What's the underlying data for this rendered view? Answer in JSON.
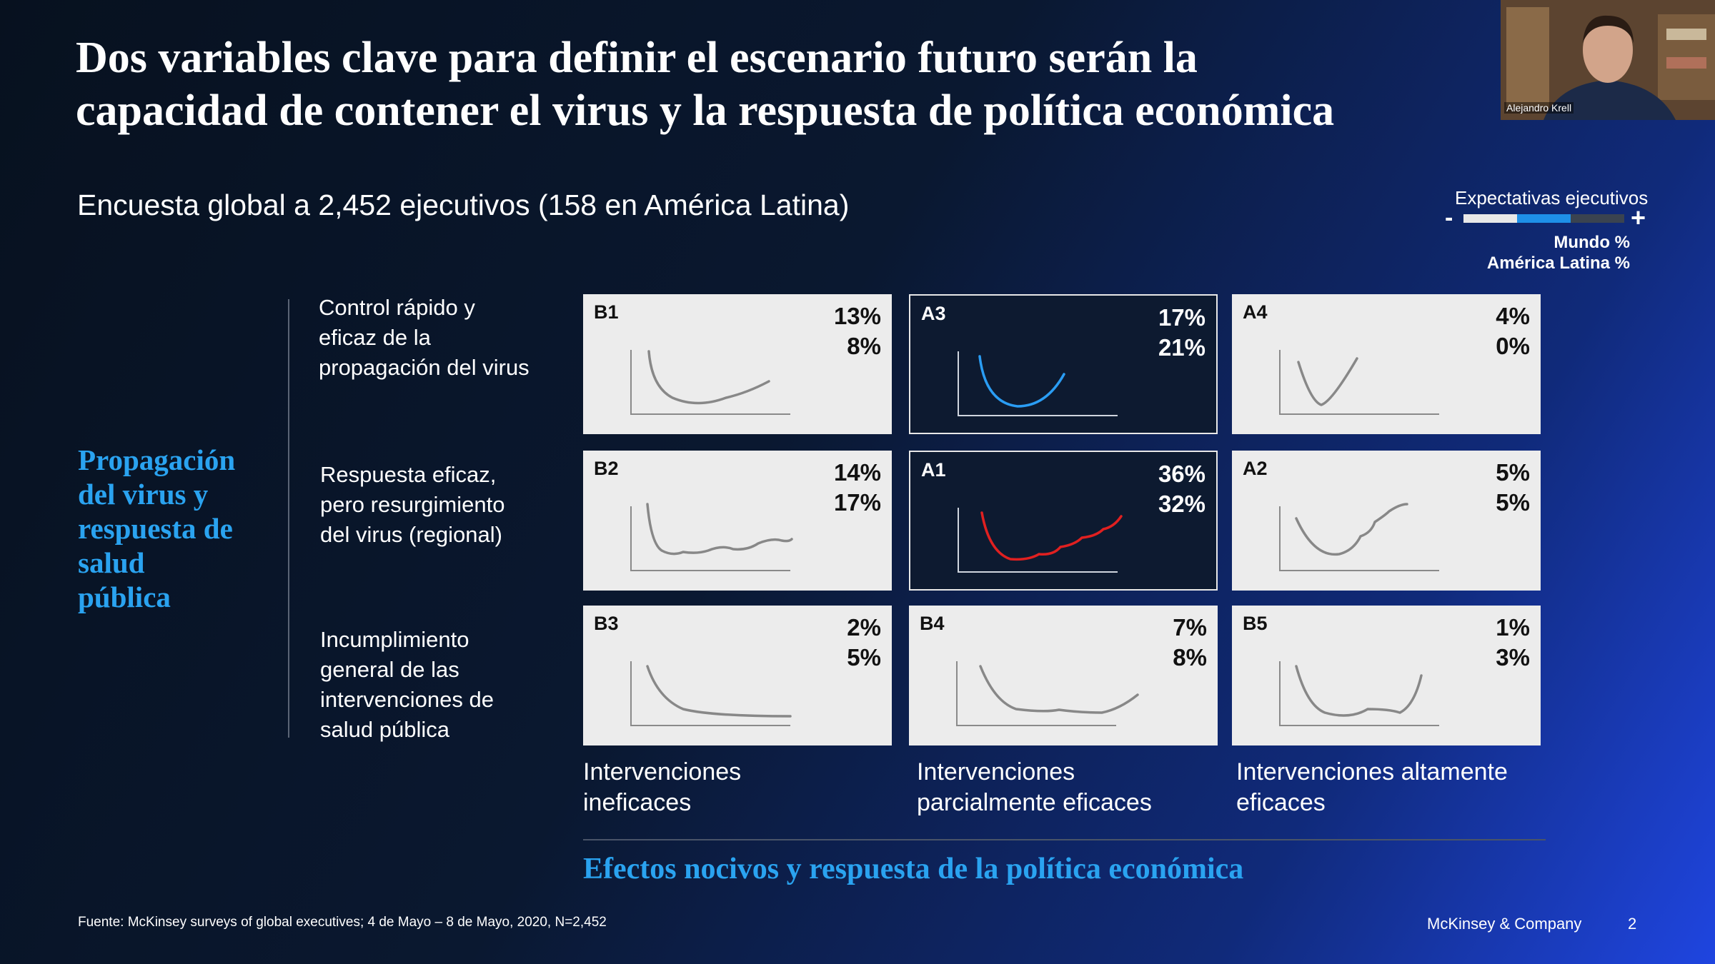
{
  "slide": {
    "title": [
      "Dos variables clave para definir el escenario futuro serán la",
      "capacidad de contener el virus y la respuesta de política económica"
    ],
    "subtitle": "Encuesta global a 2,452 ejecutivos (158 en América Latina)",
    "legend": {
      "title": "Expectativas ejecutivos",
      "minus": "-",
      "plus": "+",
      "line1": "Mundo %",
      "line2": "América Latina %",
      "colors": [
        "#e8e8e8",
        "#1e90e8",
        "#3a4350"
      ]
    },
    "y_title": [
      "Propagación",
      "del virus y",
      "respuesta de",
      "salud",
      "pública"
    ],
    "rows": [
      {
        "label": [
          "Control rápido y",
          "eficaz de la",
          "propagación del virus"
        ],
        "cells": [
          {
            "code": "B1",
            "mundo": "13%",
            "latam": "8%",
            "highlight": false,
            "curve_color": "#888888"
          },
          {
            "code": "A3",
            "mundo": "17%",
            "latam": "21%",
            "highlight": true,
            "curve_color": "#2a9df4"
          },
          {
            "code": "A4",
            "mundo": "4%",
            "latam": "0%",
            "highlight": false,
            "curve_color": "#888888"
          }
        ]
      },
      {
        "label": [
          "Respuesta eficaz,",
          "pero resurgimiento",
          "del virus (regional)"
        ],
        "cells": [
          {
            "code": "B2",
            "mundo": "14%",
            "latam": "17%",
            "highlight": false,
            "curve_color": "#888888"
          },
          {
            "code": "A1",
            "mundo": "36%",
            "latam": "32%",
            "highlight": true,
            "curve_color": "#e02020"
          },
          {
            "code": "A2",
            "mundo": "5%",
            "latam": "5%",
            "highlight": false,
            "curve_color": "#888888"
          }
        ]
      },
      {
        "label": [
          "Incumplimiento",
          "general de las",
          "intervenciones de",
          "salud pública"
        ],
        "cells": [
          {
            "code": "B3",
            "mundo": "2%",
            "latam": "5%",
            "highlight": false,
            "curve_color": "#888888"
          },
          {
            "code": "B4",
            "mundo": "7%",
            "latam": "8%",
            "highlight": false,
            "curve_color": "#888888"
          },
          {
            "code": "B5",
            "mundo": "1%",
            "latam": "3%",
            "highlight": false,
            "curve_color": "#888888"
          }
        ]
      }
    ],
    "columns": [
      [
        "Intervenciones",
        "ineficaces"
      ],
      [
        "Intervenciones",
        "parcialmente eficaces"
      ],
      [
        "Intervenciones altamente",
        "eficaces"
      ]
    ],
    "x_title": "Efectos nocivos y respuesta de la política económica",
    "source": "Fuente: McKinsey surveys of global executives; 4 de Mayo – 8 de Mayo, 2020, N=2,452",
    "brand": "McKinsey & Company",
    "page": "2"
  },
  "webcam": {
    "name": "Alejandro Krell"
  }
}
